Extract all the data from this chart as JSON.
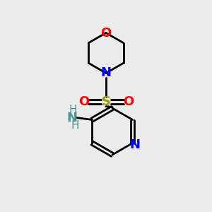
{
  "background_color": "#ebebeb",
  "atom_colors": {
    "C": "#000000",
    "N": "#0000ff",
    "O": "#ff0000",
    "S": "#999900",
    "NH2": "#4a9090"
  },
  "bond_color": "#000000",
  "line_width": 2.0,
  "font_size_atoms": 13,
  "font_size_small": 11,
  "canvas_size": 10
}
